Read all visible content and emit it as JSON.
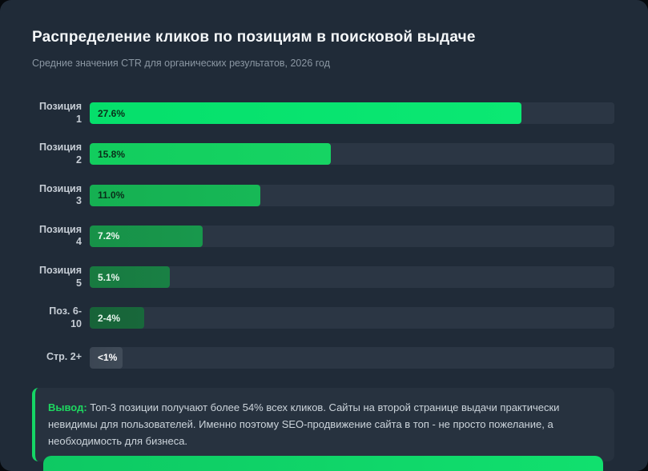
{
  "page": {
    "title": "Распределение кликов по позициям в поисковой выдаче",
    "subtitle": "Средние значения CTR для органических результатов, 2026 год"
  },
  "chart_data": {
    "type": "bar",
    "orientation": "horizontal",
    "title": "Распределение кликов по позициям в поисковой выдаче",
    "subtitle": "Средние значения CTR для органических результатов, 2026 год",
    "categories": [
      "Позиция 1",
      "Позиция 2",
      "Позиция 3",
      "Позиция 4",
      "Позиция 5",
      "Поз. 6-10",
      "Стр. 2+"
    ],
    "values": [
      27.6,
      15.8,
      11.0,
      7.2,
      5.1,
      3.0,
      0.8
    ],
    "value_labels": [
      "27.6%",
      "15.8%",
      "11.0%",
      "7.2%",
      "5.1%",
      "2-4%",
      "<1%"
    ],
    "xlim": [
      0,
      33.5
    ],
    "grid": false,
    "legend": false,
    "value_label_position": "inside-left",
    "rows": [
      {
        "label": [
          "Позиция",
          "1"
        ],
        "value_label": "27.6%",
        "width_pct": 82.3,
        "color": "#05df6b",
        "color2": "#0be873",
        "text_color": "#0a2e1a"
      },
      {
        "label": [
          "Позиция",
          "2"
        ],
        "value_label": "15.8%",
        "width_pct": 45.9,
        "color": "#12cd5e",
        "color2": "#16d463",
        "text_color": "#0a2e1a"
      },
      {
        "label": [
          "Позиция",
          "3"
        ],
        "value_label": "11.0%",
        "width_pct": 32.5,
        "color": "#15b052",
        "color2": "#17b856",
        "text_color": "#0a2e1a"
      },
      {
        "label": [
          "Позиция",
          "4"
        ],
        "value_label": "7.2%",
        "width_pct": 21.6,
        "color": "#179148",
        "color2": "#18984c",
        "text_color": "#eaf6ef"
      },
      {
        "label": [
          "Позиция",
          "5"
        ],
        "value_label": "5.1%",
        "width_pct": 15.3,
        "color": "#187a40",
        "color2": "#198044",
        "text_color": "#eaf6ef"
      },
      {
        "label": [
          "Поз. 6-",
          "10"
        ],
        "value_label": "2-4%",
        "width_pct": 10.4,
        "color": "#176338",
        "color2": "#18683b",
        "text_color": "#eaf6ef"
      },
      {
        "label": [
          "Стр. 2+"
        ],
        "value_label": "<1%",
        "width_pct": 6.2,
        "color": "#3b4653",
        "color2": "#404b58",
        "text_color": "#ffffff"
      }
    ]
  },
  "callout": {
    "label": "Вывод:",
    "text": " Топ-3 позиции получают более 54% всех кликов. Сайты на второй странице выдачи практически невидимы для пользователей. Именно поэтому SEO-продвижение сайта в топ - не просто пожелание, а необходимость для бизнеса."
  },
  "colors": {
    "page_background": "#06090d",
    "card_background": "#202b38",
    "track": "#2b3644",
    "accent_green": "#15d665",
    "title_text": "#f4f7f9",
    "subtitle_text": "#8b97a3",
    "label_text": "#c6cdd5",
    "footer_bar": "#10d968"
  }
}
